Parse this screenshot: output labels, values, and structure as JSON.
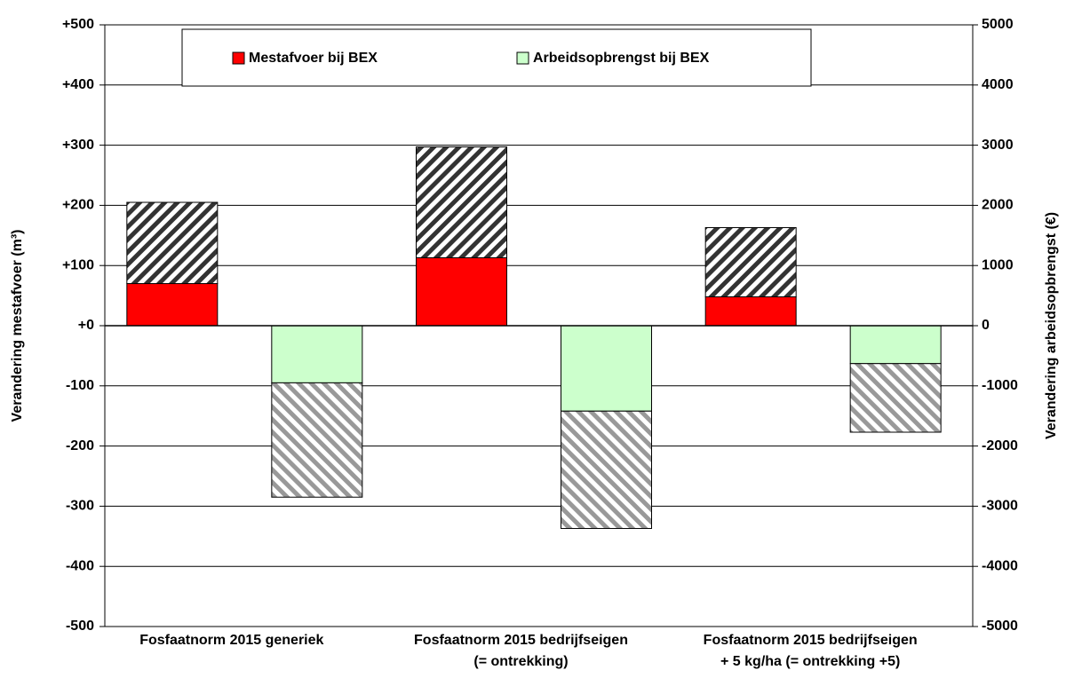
{
  "chart_data": {
    "type": "bar",
    "ylabel": "Verandering mestafvoer (m³)",
    "y2label": "Verandering arbeidsopbrengst (€)",
    "categories": [
      [
        "Fosfaatnorm 2015 generiek"
      ],
      [
        "Fosfaatnorm 2015 bedrijfseigen",
        "(= ontrekking)"
      ],
      [
        "Fosfaatnorm 2015 bedrijfseigen",
        "+ 5 kg/ha (= ontrekking +5)"
      ]
    ],
    "series": [
      {
        "name": "Mestafvoer bij BEX",
        "color": "#ff0000",
        "axis": "y",
        "slot": 0,
        "values": [
          70,
          113,
          48
        ]
      },
      {
        "color": "#333333",
        "hatch": "/",
        "axis": "y",
        "slot": 0,
        "stack_on": 0,
        "values": [
          135,
          184,
          115
        ]
      },
      {
        "name": "Arbeidsopbrengst bij BEX",
        "color": "#ccffcc",
        "axis": "y2",
        "slot": 1,
        "values": [
          -950,
          -1420,
          -630
        ]
      },
      {
        "color": "#999999",
        "hatch": "\\",
        "axis": "y2",
        "slot": 1,
        "stack_on": 2,
        "values": [
          -1900,
          -1950,
          -1140
        ]
      }
    ],
    "ylim": [
      -500,
      500
    ],
    "yticks": [
      {
        "value": -500,
        "label": "-500"
      },
      -400,
      -300,
      -200,
      -100,
      {
        "value": 0,
        "label": "+0"
      },
      {
        "value": 100,
        "label": "+100"
      },
      {
        "value": 200,
        "label": "+200"
      },
      {
        "value": 300,
        "label": "+300"
      },
      {
        "value": 400,
        "label": "+400"
      },
      {
        "value": 500,
        "label": "+500"
      }
    ],
    "y2lim": [
      -5000,
      5000
    ],
    "y2ticks": [
      -5000,
      -4000,
      -3000,
      -2000,
      -1000,
      0,
      1000,
      2000,
      3000,
      4000,
      5000
    ],
    "grid": true,
    "legend": "top"
  }
}
